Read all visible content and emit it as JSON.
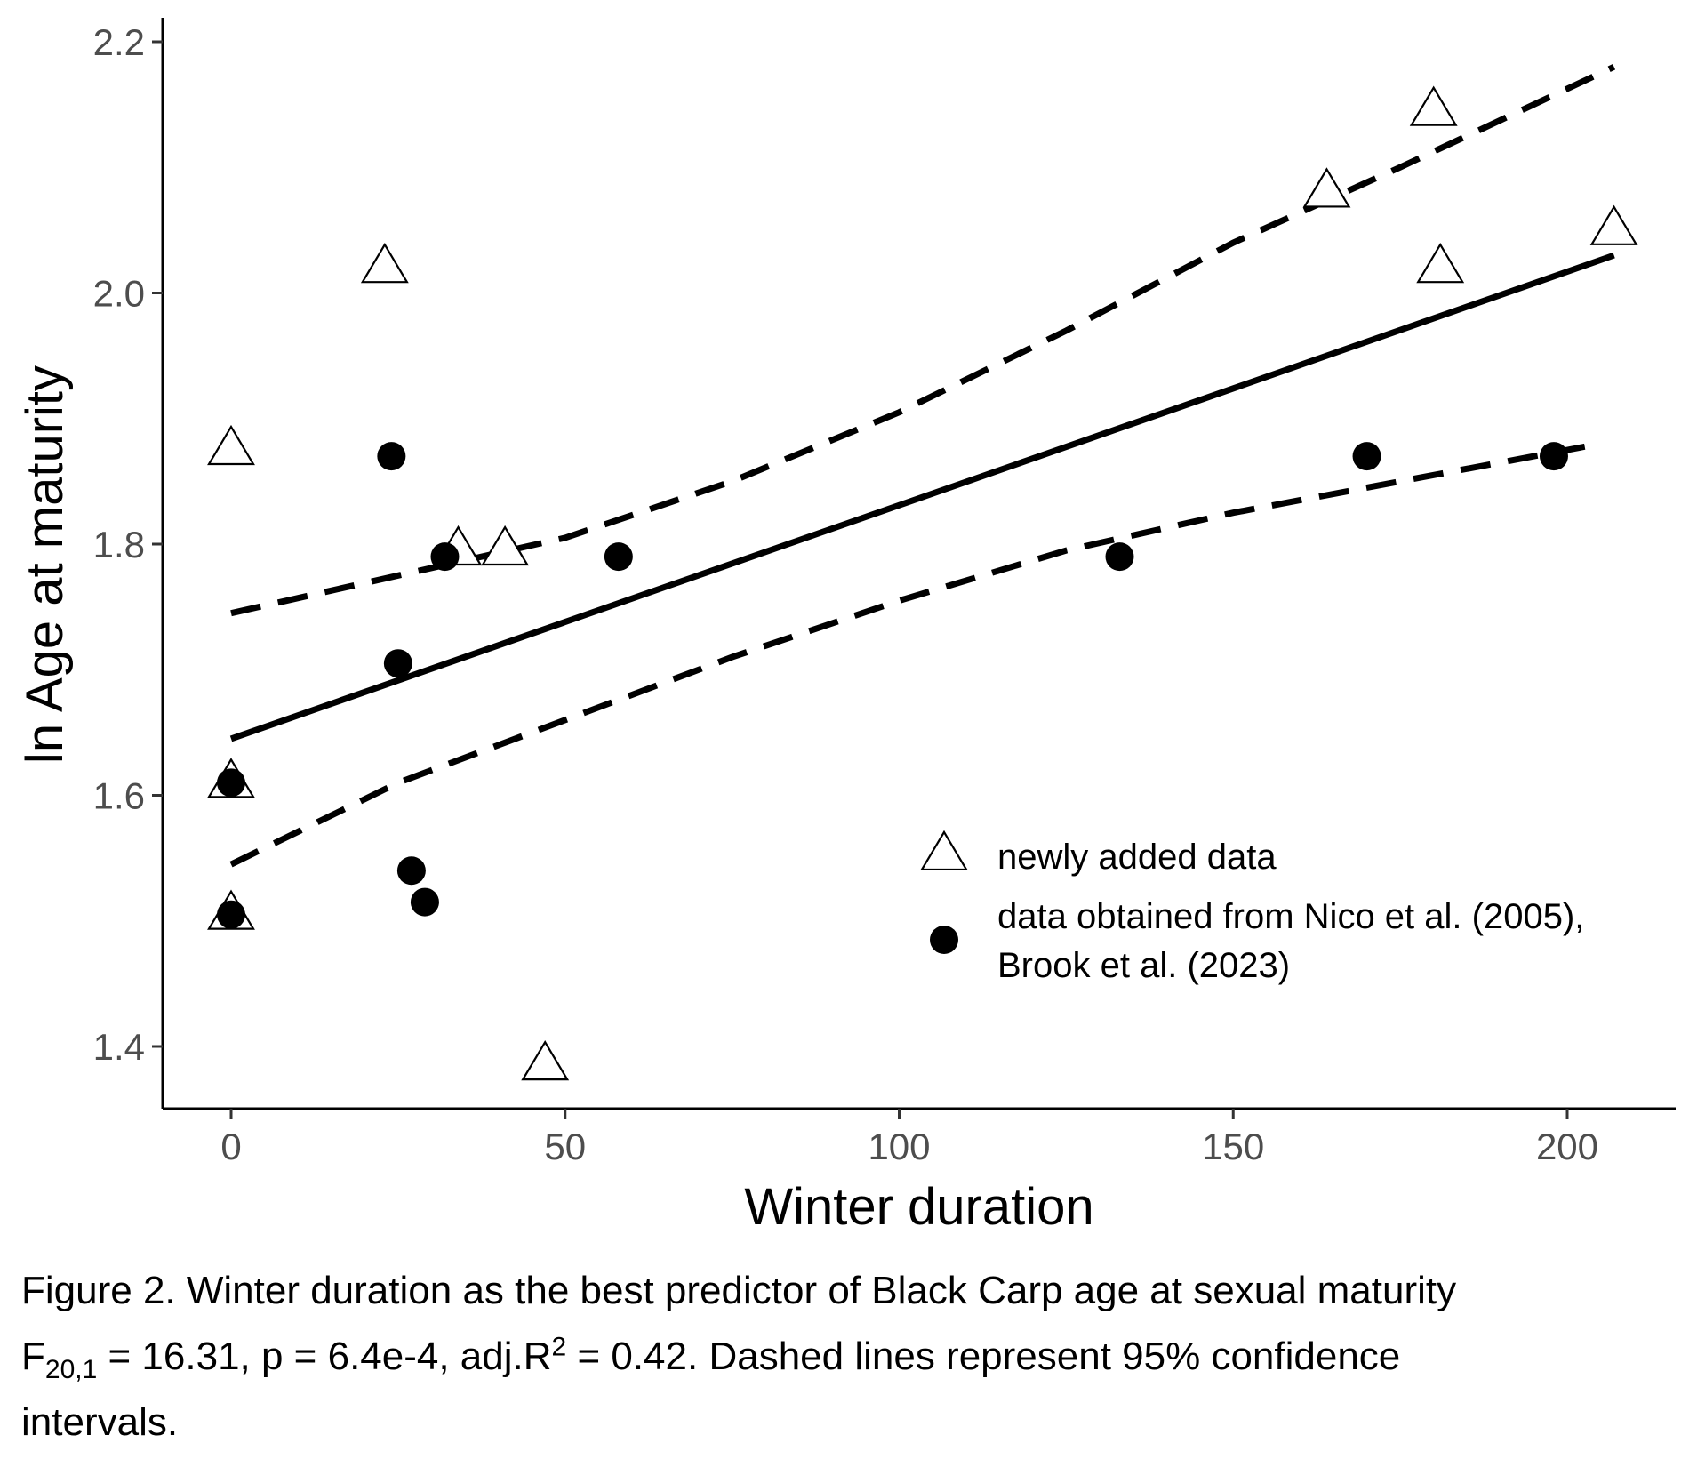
{
  "chart_data": {
    "type": "scatter",
    "xlabel": "Winter duration",
    "ylabel": "ln Age at maturity",
    "xlim": [
      -10,
      218
    ],
    "ylim": [
      1.35,
      2.22
    ],
    "xticks": [
      0,
      50,
      100,
      150,
      200
    ],
    "yticks": [
      1.4,
      1.6,
      1.8,
      2.0,
      2.2
    ],
    "xtick_labels": [
      "0",
      "50",
      "100",
      "150",
      "200"
    ],
    "ytick_labels": [
      "1.4",
      "1.6",
      "1.8",
      "2.0",
      "2.2"
    ],
    "grid": false,
    "legend_position": "center-right",
    "series": [
      {
        "name": "newly added data",
        "marker": "open-triangle",
        "points": [
          [
            0,
            1.875
          ],
          [
            0,
            1.61
          ],
          [
            0,
            1.505
          ],
          [
            23,
            2.02
          ],
          [
            34,
            1.795
          ],
          [
            41,
            1.795
          ],
          [
            47,
            1.385
          ],
          [
            164,
            2.08
          ],
          [
            180,
            2.145
          ],
          [
            181,
            2.02
          ],
          [
            207,
            2.05
          ]
        ]
      },
      {
        "name": "data obtained from Nico et al. (2005),",
        "name_line2": "Brook et al. (2023)",
        "marker": "filled-circle",
        "points": [
          [
            0,
            1.61
          ],
          [
            0,
            1.505
          ],
          [
            24,
            1.87
          ],
          [
            25,
            1.705
          ],
          [
            27,
            1.54
          ],
          [
            29,
            1.515
          ],
          [
            32,
            1.79
          ],
          [
            58,
            1.79
          ],
          [
            133,
            1.79
          ],
          [
            170,
            1.87
          ],
          [
            198,
            1.87
          ]
        ]
      }
    ],
    "fit_line": {
      "style": "solid",
      "x": [
        0,
        207
      ],
      "y": [
        1.645,
        2.03
      ]
    },
    "ci_upper": {
      "style": "dashed",
      "x": [
        0,
        25,
        50,
        75,
        100,
        125,
        150,
        175,
        207
      ],
      "y": [
        1.745,
        1.775,
        1.805,
        1.85,
        1.905,
        1.97,
        2.04,
        2.1,
        2.18
      ]
    },
    "ci_lower": {
      "style": "dashed",
      "x": [
        0,
        25,
        50,
        75,
        100,
        125,
        150,
        175,
        205
      ],
      "y": [
        1.545,
        1.61,
        1.66,
        1.71,
        1.755,
        1.795,
        1.825,
        1.85,
        1.88
      ]
    }
  },
  "caption": {
    "line1": "Figure 2. Winter duration as the best predictor of Black Carp age at sexual maturity",
    "f_label": "F",
    "f_sub": "20,1",
    "f_value": " = 16.31, p = 6.4e-4, adj.R",
    "r_sup": "2",
    "r_value": " = 0.42. Dashed lines represent 95% confidence",
    "line3": "intervals."
  }
}
